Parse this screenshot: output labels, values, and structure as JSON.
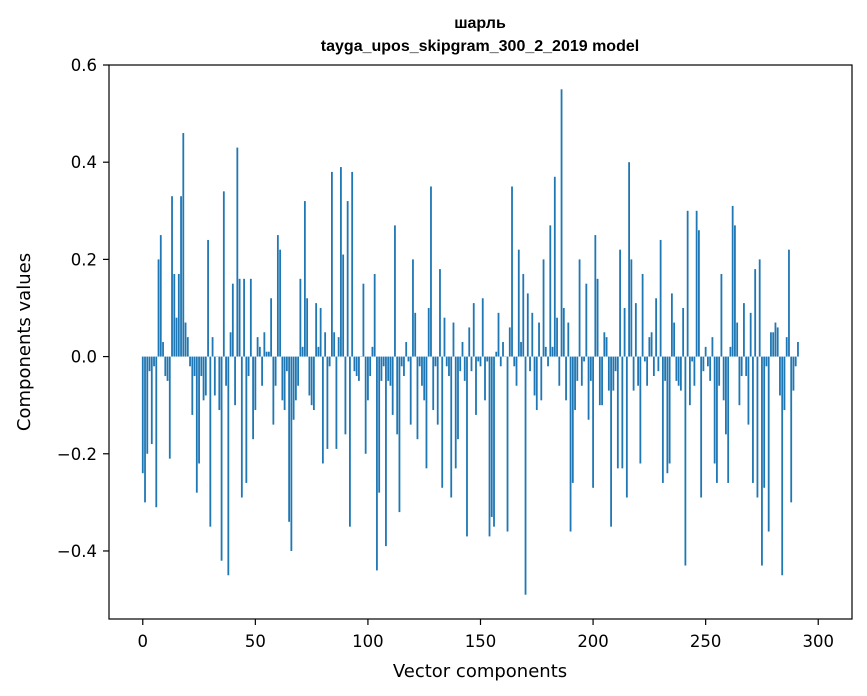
{
  "chart_data": {
    "type": "bar",
    "title": "шарль",
    "subtitle": "tayga_upos_skipgram_300_2_2019 model",
    "xlabel": "Vector components",
    "ylabel": "Components values",
    "xlim": [
      -15,
      315
    ],
    "ylim": [
      -0.54,
      0.6
    ],
    "xticks": [
      0,
      50,
      100,
      150,
      200,
      250,
      300
    ],
    "xtick_labels": [
      "0",
      "50",
      "100",
      "150",
      "200",
      "250",
      "300"
    ],
    "yticks": [
      -0.4,
      -0.2,
      0.0,
      0.2,
      0.4,
      0.6
    ],
    "ytick_labels": [
      "−0.4",
      "−0.2",
      "0.0",
      "0.2",
      "0.4",
      "0.6"
    ],
    "grid": false,
    "bar_color": "#1f77b4",
    "x": "indices 0..299",
    "values": [
      -0.24,
      -0.3,
      -0.2,
      -0.03,
      -0.18,
      -0.02,
      -0.31,
      0.2,
      0.25,
      0.03,
      -0.04,
      -0.05,
      -0.21,
      0.33,
      0.17,
      0.08,
      0.17,
      0.33,
      0.46,
      0.07,
      0.04,
      -0.02,
      -0.12,
      -0.04,
      -0.28,
      -0.22,
      -0.04,
      -0.09,
      -0.08,
      0.24,
      -0.35,
      0.04,
      -0.08,
      0.0,
      -0.11,
      -0.42,
      0.34,
      -0.06,
      -0.45,
      0.05,
      0.15,
      -0.1,
      0.43,
      0.16,
      -0.29,
      0.16,
      -0.26,
      -0.04,
      0.16,
      -0.17,
      -0.11,
      0.04,
      0.02,
      -0.06,
      0.05,
      0.01,
      0.01,
      0.12,
      -0.14,
      -0.06,
      0.25,
      0.22,
      -0.09,
      -0.11,
      -0.03,
      -0.34,
      -0.4,
      -0.13,
      -0.09,
      -0.06,
      0.16,
      0.02,
      0.32,
      0.12,
      -0.08,
      -0.1,
      -0.11,
      0.11,
      0.02,
      0.1,
      -0.22,
      0.05,
      -0.19,
      -0.02,
      0.38,
      0.05,
      -0.19,
      0.04,
      0.39,
      0.21,
      -0.16,
      0.32,
      -0.35,
      0.38,
      -0.03,
      -0.04,
      -0.05,
      0.0,
      0.15,
      -0.2,
      -0.09,
      -0.04,
      0.02,
      0.17,
      -0.44,
      -0.28,
      -0.05,
      -0.02,
      -0.39,
      -0.05,
      -0.06,
      -0.12,
      0.27,
      -0.16,
      -0.32,
      -0.02,
      -0.04,
      0.03,
      -0.01,
      -0.14,
      0.2,
      0.09,
      -0.17,
      -0.02,
      -0.06,
      -0.09,
      -0.23,
      0.1,
      0.35,
      -0.11,
      -0.02,
      -0.14,
      0.18,
      -0.27,
      0.08,
      -0.02,
      -0.04,
      -0.29,
      0.07,
      -0.23,
      -0.17,
      -0.03,
      0.03,
      -0.05,
      -0.37,
      0.06,
      -0.03,
      0.11,
      -0.12,
      -0.01,
      -0.02,
      0.12,
      -0.09,
      -0.01,
      -0.37,
      -0.33,
      -0.35,
      0.01,
      0.09,
      -0.02,
      0.03,
      0.0,
      -0.36,
      0.06,
      0.35,
      -0.02,
      -0.06,
      0.22,
      0.03,
      0.17,
      -0.49,
      0.13,
      -0.03,
      0.09,
      -0.08,
      -0.11,
      0.07,
      -0.09,
      0.2,
      0.02,
      -0.02,
      0.27,
      0.02,
      0.37,
      0.08,
      -0.06,
      0.55,
      0.1,
      -0.09,
      0.07,
      -0.36,
      -0.26,
      -0.11,
      -0.05,
      0.2,
      -0.06,
      -0.01,
      0.15,
      -0.13,
      -0.05,
      -0.27,
      0.25,
      0.16,
      -0.1,
      -0.1,
      0.05,
      0.04,
      -0.07,
      -0.35,
      -0.07,
      -0.03,
      -0.23,
      0.22,
      -0.23,
      0.1,
      -0.29,
      0.4,
      0.2,
      -0.07,
      0.11,
      -0.06,
      -0.22,
      0.17,
      -0.01,
      -0.06,
      0.04,
      0.05,
      -0.04,
      0.12,
      -0.03,
      0.24,
      -0.26,
      -0.05,
      -0.24,
      -0.22,
      0.13,
      0.07,
      -0.05,
      -0.06,
      -0.07,
      0.1,
      -0.43,
      0.3,
      -0.1,
      -0.01,
      -0.06,
      0.3,
      0.26,
      -0.29,
      -0.03,
      0.02,
      -0.02,
      -0.05,
      0.04,
      -0.22,
      -0.26,
      -0.06,
      0.17,
      -0.09,
      -0.16,
      -0.26,
      0.02,
      0.31,
      0.27,
      0.07,
      -0.1,
      -0.04,
      0.11,
      -0.04,
      -0.14,
      0.09,
      -0.26,
      0.18,
      -0.29,
      0.2,
      -0.43,
      -0.27,
      -0.02,
      -0.36,
      0.05,
      0.05,
      0.07,
      0.06,
      -0.08,
      -0.45,
      -0.11,
      0.04,
      0.22,
      -0.3,
      -0.07,
      -0.02,
      0.03
    ]
  }
}
